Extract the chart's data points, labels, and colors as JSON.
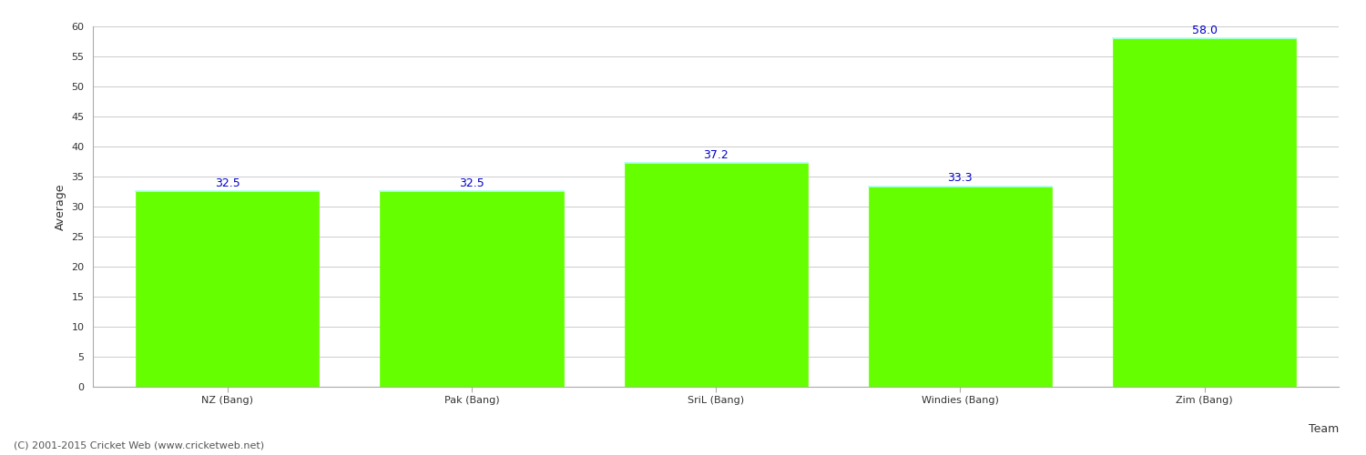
{
  "categories": [
    "NZ (Bang)",
    "Pak (Bang)",
    "SriL (Bang)",
    "Windies (Bang)",
    "Zim (Bang)"
  ],
  "values": [
    32.5,
    32.5,
    37.2,
    33.3,
    58.0
  ],
  "bar_color": "#66ff00",
  "bar_edge_color": "#66ff00",
  "bar_top_edge_color": "#aaffee",
  "xlabel": "Team",
  "ylabel": "Average",
  "ylim": [
    0,
    60
  ],
  "yticks": [
    0,
    5,
    10,
    15,
    20,
    25,
    30,
    35,
    40,
    45,
    50,
    55,
    60
  ],
  "value_label_color": "#0000cc",
  "value_label_fontsize": 9,
  "axis_label_fontsize": 9,
  "tick_label_fontsize": 8,
  "background_color": "#ffffff",
  "grid_color": "#cccccc",
  "footer_text": "(C) 2001-2015 Cricket Web (www.cricketweb.net)",
  "footer_fontsize": 8,
  "footer_color": "#555555"
}
